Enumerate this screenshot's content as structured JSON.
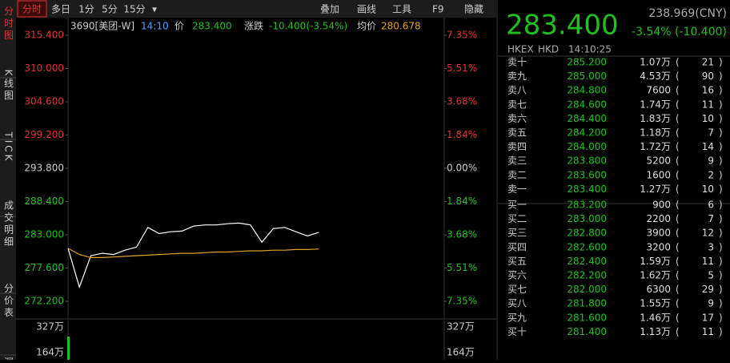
{
  "toolbar": {
    "tabs": [
      "分时",
      "多日",
      "1分",
      "5分",
      "15分",
      "▾"
    ],
    "tools": [
      "叠加",
      "画线",
      "工具",
      "F9",
      "隐藏"
    ]
  },
  "side_tabs": [
    "分时图",
    "K线图",
    "TICK",
    "成交明细",
    "分价表",
    "深"
  ],
  "info_bar": {
    "code": "3690[美团-W]",
    "time": "14:10",
    "price_label": "价",
    "price": "283.400",
    "change_label": "涨跌",
    "change": "-10.400(-3.54%)",
    "avg_label": "均价",
    "avg": "280.678"
  },
  "chart_data": {
    "type": "line",
    "ylim": [
      272.2,
      315.4
    ],
    "yticks": [
      {
        "value": 315.4,
        "label": "315.400"
      },
      {
        "value": 310,
        "label": "310.000"
      },
      {
        "value": 304.6,
        "label": "304.600"
      },
      {
        "value": 299.2,
        "label": "299.200"
      },
      {
        "value": 293.8,
        "label": "293.800"
      },
      {
        "value": 288.4,
        "label": "288.400"
      },
      {
        "value": 283,
        "label": "283.000"
      },
      {
        "value": 277.6,
        "label": "277.600"
      },
      {
        "value": 272.2,
        "label": "272.200"
      }
    ],
    "y2lim": [
      -7.35,
      7.35
    ],
    "y2ticks": [
      {
        "value": 7.35,
        "label": "7.35%"
      },
      {
        "value": 5.51,
        "label": "5.51%"
      },
      {
        "value": 3.68,
        "label": "3.68%"
      },
      {
        "value": 1.84,
        "label": "1.84%"
      },
      {
        "value": 0,
        "label": "0.00%"
      },
      {
        "value": -1.84,
        "label": "1.84%"
      },
      {
        "value": -3.68,
        "label": "3.68%"
      },
      {
        "value": -5.51,
        "label": "5.51%"
      },
      {
        "value": -7.35,
        "label": "7.35%"
      }
    ],
    "volume_ticks": [
      "327万",
      "164万"
    ],
    "series": [
      {
        "name": "价",
        "color": "#ffffff",
        "values": [
          280.8,
          274.5,
          279.6,
          280.0,
          279.8,
          280.5,
          281.0,
          284.2,
          283.2,
          283.5,
          283.6,
          284.4,
          284.6,
          284.6,
          284.8,
          284.9,
          284.6,
          281.8,
          284.0,
          284.2,
          283.5,
          282.8,
          283.4
        ]
      },
      {
        "name": "均价",
        "color": "#e0a020",
        "values": [
          280.8,
          279.8,
          279.3,
          279.3,
          279.4,
          279.5,
          279.6,
          279.7,
          279.8,
          279.9,
          280.0,
          280.0,
          280.1,
          280.2,
          280.2,
          280.3,
          280.4,
          280.4,
          280.5,
          280.5,
          280.6,
          280.6,
          280.678
        ]
      }
    ]
  },
  "quote": {
    "price": "283.400",
    "cny": "238.969(CNY)",
    "change": "-3.54% (-10.400)",
    "exchange": "HKEX",
    "currency": "HKD",
    "time": "14:10:25"
  },
  "order_book": [
    [
      "卖十",
      "285.200",
      "1.07万",
      "21"
    ],
    [
      "卖九",
      "285.000",
      "4.53万",
      "90"
    ],
    [
      "卖八",
      "284.800",
      "7600",
      "16"
    ],
    [
      "卖七",
      "284.600",
      "1.74万",
      "11"
    ],
    [
      "卖六",
      "284.400",
      "1.83万",
      "10"
    ],
    [
      "卖五",
      "284.200",
      "1.18万",
      "7"
    ],
    [
      "卖四",
      "284.000",
      "1.72万",
      "14"
    ],
    [
      "卖三",
      "283.800",
      "5200",
      "9"
    ],
    [
      "卖二",
      "283.600",
      "1600",
      "2"
    ],
    [
      "卖一",
      "283.400",
      "1.27万",
      "10"
    ],
    [
      "买一",
      "283.200",
      "900",
      "6"
    ],
    [
      "买二",
      "283.000",
      "2200",
      "7"
    ],
    [
      "买三",
      "282.800",
      "3900",
      "12"
    ],
    [
      "买四",
      "282.600",
      "3200",
      "3"
    ],
    [
      "买五",
      "282.400",
      "1.59万",
      "11"
    ],
    [
      "买六",
      "282.200",
      "1.62万",
      "5"
    ],
    [
      "买七",
      "282.000",
      "6300",
      "29"
    ],
    [
      "买八",
      "281.800",
      "1.55万",
      "9"
    ],
    [
      "买九",
      "281.600",
      "1.46万",
      "17"
    ],
    [
      "买十",
      "281.400",
      "1.13万",
      "11"
    ]
  ]
}
